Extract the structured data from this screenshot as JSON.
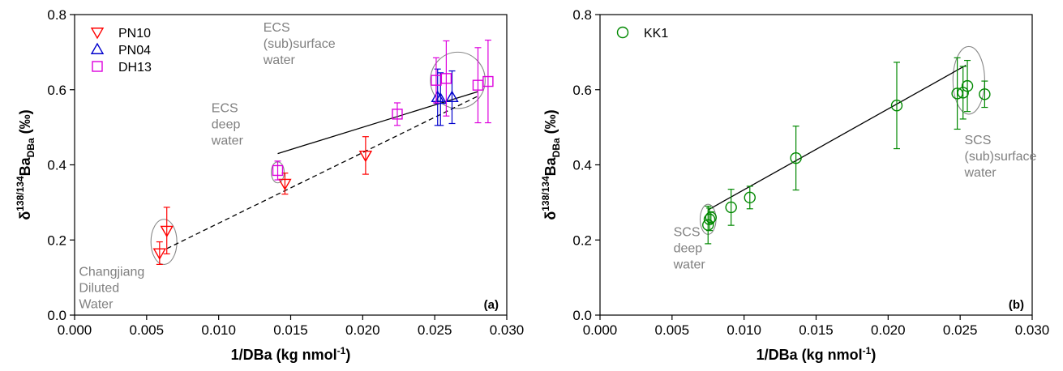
{
  "chart_data": [
    {
      "type": "scatter",
      "panel_label": "(a)",
      "xlabel": {
        "main": "1/DBa (kg nmol",
        "sup": "-1",
        "end": ")"
      },
      "ylabel": {
        "delta": "δ",
        "sup": "138/134",
        "main": "Ba",
        "sub": "DBa",
        "unit": " (‰)"
      },
      "xlim": [
        0,
        0.03
      ],
      "ylim": [
        0,
        0.8
      ],
      "x_ticks": [
        "0.000",
        "0.005",
        "0.010",
        "0.015",
        "0.020",
        "0.025",
        "0.030"
      ],
      "y_ticks": [
        "0.0",
        "0.2",
        "0.4",
        "0.6",
        "0.8"
      ],
      "legend_position": "top-left",
      "series": [
        {
          "name": "PN10",
          "marker": "triangle-down",
          "color": "#ff0000",
          "points": [
            {
              "x": 0.0059,
              "y": 0.165,
              "err": 0.03
            },
            {
              "x": 0.0064,
              "y": 0.225,
              "err": 0.062
            },
            {
              "x": 0.0146,
              "y": 0.35,
              "err": 0.028
            },
            {
              "x": 0.0202,
              "y": 0.425,
              "err": 0.05
            }
          ]
        },
        {
          "name": "PN04",
          "marker": "triangle-up",
          "color": "#0000cc",
          "points": [
            {
              "x": 0.0252,
              "y": 0.58,
              "err": 0.075
            },
            {
              "x": 0.0254,
              "y": 0.575,
              "err": 0.07
            },
            {
              "x": 0.0262,
              "y": 0.58,
              "err": 0.07
            }
          ]
        },
        {
          "name": "DH13",
          "marker": "square",
          "color": "#dd00dd",
          "points": [
            {
              "x": 0.0141,
              "y": 0.385,
              "err": 0.025
            },
            {
              "x": 0.0224,
              "y": 0.535,
              "err": 0.03
            },
            {
              "x": 0.0251,
              "y": 0.625,
              "err": 0.06
            },
            {
              "x": 0.0258,
              "y": 0.63,
              "err": 0.1
            },
            {
              "x": 0.028,
              "y": 0.612,
              "err": 0.1
            },
            {
              "x": 0.0287,
              "y": 0.622,
              "err": 0.11
            }
          ]
        }
      ],
      "fit_lines": [
        {
          "style": "solid",
          "from": [
            0.0141,
            0.43
          ],
          "to": [
            0.028,
            0.595
          ]
        },
        {
          "style": "dashed",
          "from": [
            0.0064,
            0.177
          ],
          "to": [
            0.028,
            0.583
          ]
        }
      ],
      "annotations": [
        {
          "lines": [
            "ECS",
            "(sub)surface",
            "water"
          ],
          "x": 0.0131,
          "y": 0.755,
          "ellipse": {
            "cx": 0.0266,
            "cy": 0.625,
            "rx": 0.0019,
            "ry": 0.075
          }
        },
        {
          "lines": [
            "ECS",
            "deep",
            "water"
          ],
          "x": 0.0095,
          "y": 0.54,
          "ellipse": {
            "cx": 0.0141,
            "cy": 0.38,
            "rx": 0.00045,
            "ry": 0.028
          }
        },
        {
          "lines": [
            "Changjiang",
            "Diluted",
            "Water"
          ],
          "x": 0.0003,
          "y": 0.105,
          "ellipse": {
            "cx": 0.0062,
            "cy": 0.195,
            "rx": 0.0009,
            "ry": 0.06
          }
        }
      ]
    },
    {
      "type": "scatter",
      "panel_label": "(b)",
      "xlabel": {
        "main": "1/DBa (kg nmol",
        "sup": "-1",
        "end": ")"
      },
      "ylabel": {
        "delta": "δ",
        "sup": "138/134",
        "main": "Ba",
        "sub": "DBa",
        "unit": " (‰)"
      },
      "xlim": [
        0,
        0.03
      ],
      "ylim": [
        0,
        0.8
      ],
      "x_ticks": [
        "0.000",
        "0.005",
        "0.010",
        "0.015",
        "0.020",
        "0.025",
        "0.030"
      ],
      "y_ticks": [
        "0.0",
        "0.2",
        "0.4",
        "0.6",
        "0.8"
      ],
      "legend_position": "top-left",
      "series": [
        {
          "name": "KK1",
          "marker": "circle",
          "color": "#008800",
          "points": [
            {
              "x": 0.0075,
              "y": 0.24,
              "err": 0.05
            },
            {
              "x": 0.0076,
              "y": 0.255,
              "err": 0.03
            },
            {
              "x": 0.0077,
              "y": 0.26,
              "err": 0.015
            },
            {
              "x": 0.0091,
              "y": 0.287,
              "err": 0.048
            },
            {
              "x": 0.0104,
              "y": 0.313,
              "err": 0.03
            },
            {
              "x": 0.0136,
              "y": 0.418,
              "err": 0.085
            },
            {
              "x": 0.0206,
              "y": 0.558,
              "err": 0.115
            },
            {
              "x": 0.0248,
              "y": 0.59,
              "err": 0.095
            },
            {
              "x": 0.0252,
              "y": 0.592,
              "err": 0.07
            },
            {
              "x": 0.0255,
              "y": 0.61,
              "err": 0.068
            },
            {
              "x": 0.0267,
              "y": 0.588,
              "err": 0.035
            }
          ]
        }
      ],
      "fit_lines": [
        {
          "style": "solid",
          "from": [
            0.0075,
            0.28
          ],
          "to": [
            0.0254,
            0.665
          ]
        }
      ],
      "annotations": [
        {
          "lines": [
            "SCS",
            "(sub)surface",
            "water"
          ],
          "x": 0.0253,
          "y": 0.455,
          "ellipse": {
            "cx": 0.0256,
            "cy": 0.625,
            "rx": 0.0011,
            "ry": 0.09
          }
        },
        {
          "lines": [
            "SCS",
            "deep",
            "water"
          ],
          "x": 0.0051,
          "y": 0.21,
          "ellipse": {
            "cx": 0.0075,
            "cy": 0.255,
            "rx": 0.00055,
            "ry": 0.04
          }
        }
      ]
    }
  ]
}
